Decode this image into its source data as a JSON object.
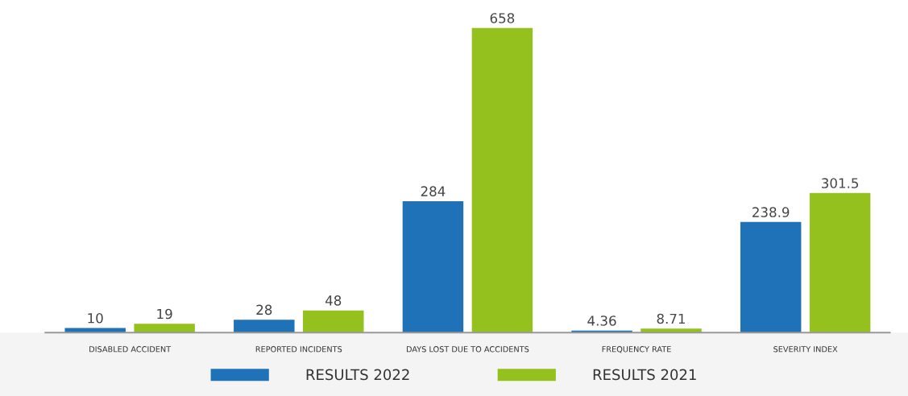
{
  "chart_data": {
    "type": "bar",
    "categories": [
      "DISABLED ACCIDENT",
      "REPORTED INCIDENTS",
      "DAYS LOST DUE TO ACCIDENTS",
      "FREQUENCY RATE",
      "SEVERITY INDEX"
    ],
    "series": [
      {
        "name": "RESULTS 2022",
        "color": "#1f72b8",
        "values": [
          10,
          28,
          284,
          4.36,
          238.9
        ]
      },
      {
        "name": "RESULTS 2021",
        "color": "#95c11f",
        "values": [
          19,
          48,
          658,
          8.71,
          301.5
        ]
      }
    ],
    "data_labels": true,
    "legend": "bottom",
    "grid": false
  }
}
